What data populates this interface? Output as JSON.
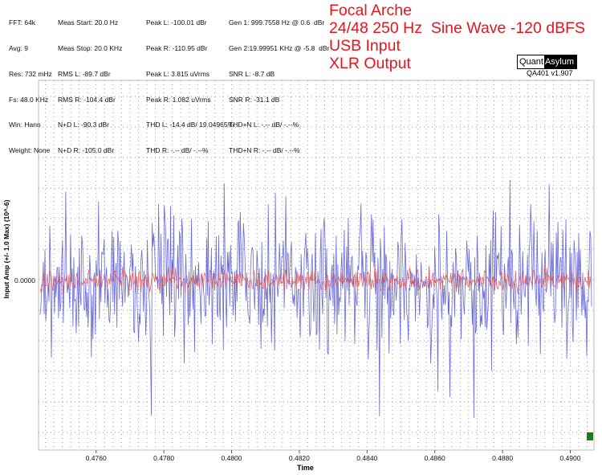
{
  "stats": {
    "col1": [
      "FFT: 64k",
      "Avg: 9",
      "Res: 732 mHz",
      "Fs: 48.0 KHz",
      "Win: Hann",
      "Weight: None"
    ],
    "col2": [
      "Meas Start: 20.0 Hz",
      "Meas Stop: 20.0 KHz",
      "RMS L: -89.7 dBr",
      "RMS R: -104.4 dBr",
      "N+D L: -90.3 dBr",
      "N+D R: -105.0 dBr"
    ],
    "col3": [
      "Peak L: -100.01 dBr",
      "Peak R: -110.95 dBr",
      "Peak L: 3.815 uVrms",
      "Peak R: 1.082 uVrms",
      "THD L: -14.4 dB/ 19.04965%",
      "THD R: -.-- dB/ -.--%"
    ],
    "col4": [
      "Gen 1: 999.7558 Hz @ 0.6  dBr",
      "Gen 2:19.99951 KHz @ -5.8  dBr",
      "SNR L: -8.7 dB",
      "SNR R: -31.1 dB",
      "THD+N L: -.-- dB/ -.--%",
      "THD+N R: -.-- dB/ -.--%"
    ]
  },
  "title_lines": [
    "Focal Arche",
    "24/48 250 Hz  Sine Wave -120 dBFS",
    "USB Input",
    "XLR Output"
  ],
  "logo": {
    "part1": "Quant",
    "part2": "Asylum"
  },
  "version": "QA401 v1.907",
  "chart_data": {
    "type": "line",
    "xlabel": "Time",
    "ylabel": "Input Amp (+/- 1.0 Max) (10^-6)",
    "x_ticks": [
      "0.4760",
      "0.4780",
      "0.4800",
      "0.4820",
      "0.4840",
      "0.4860",
      "0.4880",
      "0.4900"
    ],
    "y_ticks": [
      "0.0000"
    ],
    "xlim": [
      0.4743,
      0.4907
    ],
    "grid": true,
    "series": [
      {
        "color": "#5a5ad8",
        "amplitude_envelope": 1.0,
        "description_values_relative": "noise ±1.0 (blue, larger)"
      },
      {
        "color": "#e05a5a",
        "amplitude_envelope": 0.12
      }
    ]
  },
  "colors": {
    "blue_trace": "#5a5ad8",
    "red_trace": "#e05a5a",
    "title": "#e8141b",
    "grid": "#9a9a9a",
    "marker": "#1c7a1c"
  }
}
